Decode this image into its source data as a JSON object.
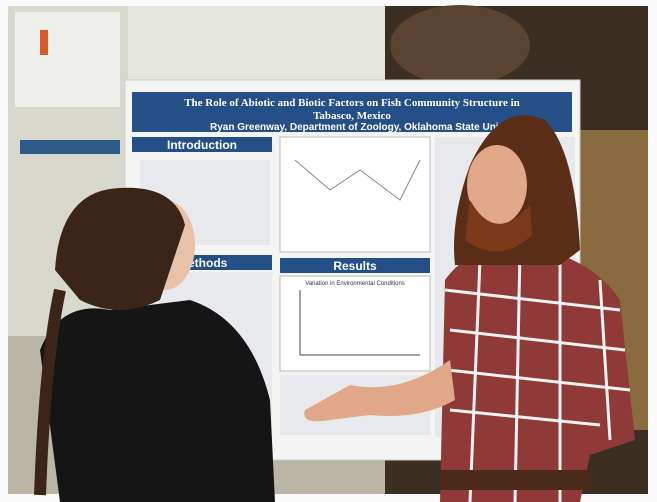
{
  "poster": {
    "title_line1": "The Role of Abiotic and Biotic Factors on Fish Community Structure in",
    "title_line2": "Tabasco, Mexico",
    "author": "Ryan Greenway, Department of Zoology, Oklahoma State Univ",
    "sections": [
      "Introduction",
      "Methods",
      "Results"
    ],
    "results_chart_title": "Variation in Environmental Conditions"
  }
}
